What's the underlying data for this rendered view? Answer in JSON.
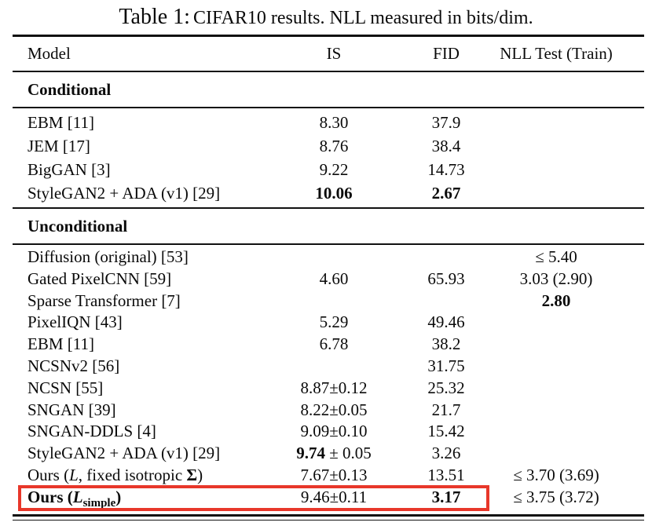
{
  "title": {
    "label": "Table 1:",
    "caption": "CIFAR10 results. NLL measured in bits/dim."
  },
  "header": {
    "model": "Model",
    "is": "IS",
    "fid": "FID",
    "nll": "NLL Test (Train)"
  },
  "highlight_color": "#e8372a",
  "sections": [
    {
      "name": "Conditional",
      "rows": [
        {
          "model": "EBM [11]",
          "is": "8.30",
          "fid": "37.9",
          "nll": ""
        },
        {
          "model": "JEM [17]",
          "is": "8.76",
          "fid": "38.4",
          "nll": ""
        },
        {
          "model": "BigGAN [3]",
          "is": "9.22",
          "fid": "14.73",
          "nll": ""
        },
        {
          "model": "StyleGAN2 + ADA (v1) [29]",
          "is": "10.06",
          "fid": "2.67",
          "nll": ""
        }
      ]
    },
    {
      "name": "Unconditional",
      "rows": [
        {
          "model": "Diffusion (original) [53]",
          "is": "",
          "fid": "",
          "nll": "≤ 5.40"
        },
        {
          "model": "Gated PixelCNN [59]",
          "is": "4.60",
          "fid": "65.93",
          "nll": "3.03 (2.90)"
        },
        {
          "model": "Sparse Transformer [7]",
          "is": "",
          "fid": "",
          "nll": "2.80"
        },
        {
          "model": "PixelIQN [43]",
          "is": "5.29",
          "fid": "49.46",
          "nll": ""
        },
        {
          "model": "EBM [11]",
          "is": "6.78",
          "fid": "38.2",
          "nll": ""
        },
        {
          "model": "NCSNv2 [56]",
          "is": "",
          "fid": "31.75",
          "nll": ""
        },
        {
          "model": "NCSN [55]",
          "is": "8.87±0.12",
          "fid": "25.32",
          "nll": ""
        },
        {
          "model": "SNGAN [39]",
          "is": "8.22±0.05",
          "fid": "21.7",
          "nll": ""
        },
        {
          "model": "SNGAN-DDLS [4]",
          "is": "9.09±0.10",
          "fid": "15.42",
          "nll": ""
        },
        {
          "model": "StyleGAN2 + ADA (v1) [29]",
          "is_main": "9.74",
          "is_err": " ± 0.05",
          "fid": "3.26",
          "nll": ""
        },
        {
          "model_parts": [
            "Ours (",
            "L",
            ", fixed isotropic ",
            "Σ",
            ")"
          ],
          "is": "7.67±0.13",
          "fid": "13.51",
          "nll": "≤ 3.70 (3.69)"
        },
        {
          "model_parts": [
            "Ours",
            " (",
            "L",
            "simple",
            ")"
          ],
          "is": "9.46±0.11",
          "fid": "3.17",
          "nll": "≤ 3.75 (3.72)"
        }
      ]
    }
  ]
}
